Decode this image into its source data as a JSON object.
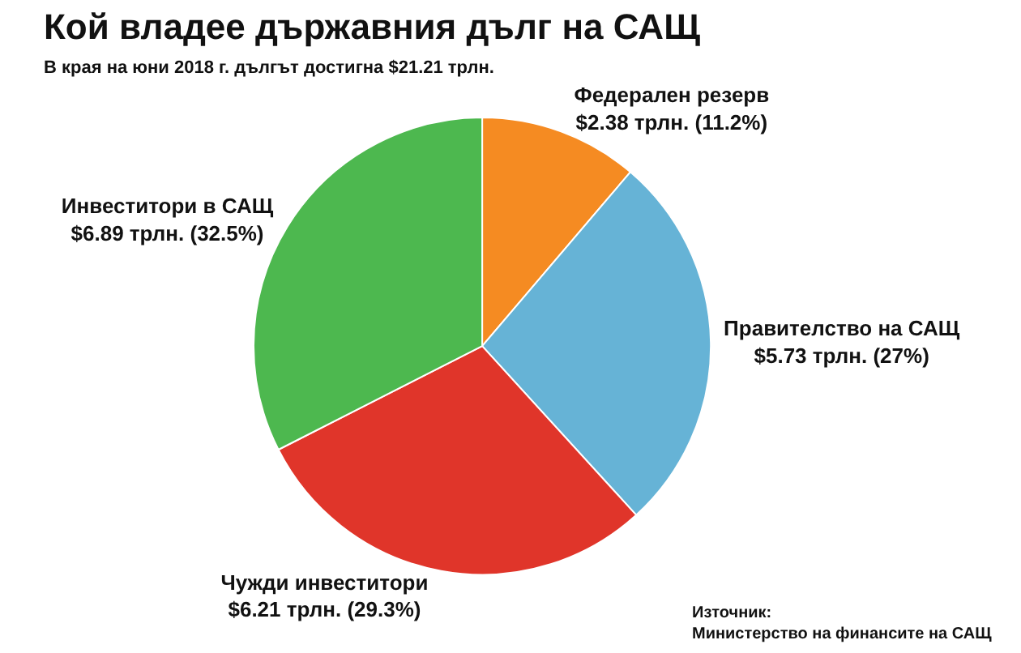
{
  "chart_data": {
    "type": "pie",
    "title": "Кой владее държавния дълг на САЩ",
    "subtitle": "В края на юни 2018 г. дългът достигна $21.21 трлн.",
    "categories": [
      "Федерален резерв",
      "Правителство на САЩ",
      "Чужди инвеститори",
      "Инвеститори в САЩ"
    ],
    "values": [
      2.38,
      5.73,
      6.21,
      6.89
    ],
    "value_labels": [
      "$2.38 трлн. (11.2%)",
      "$5.73 трлн. (27%)",
      "$6.21 трлн. (29.3%)",
      "$6.89 трлн. (32.5%)"
    ],
    "colors": [
      "#f58b22",
      "#66b3d6",
      "#e0352a",
      "#4db84f"
    ],
    "legend": false,
    "annotations": [
      "Източник:\nМинистерство на финансите на САЩ"
    ]
  }
}
